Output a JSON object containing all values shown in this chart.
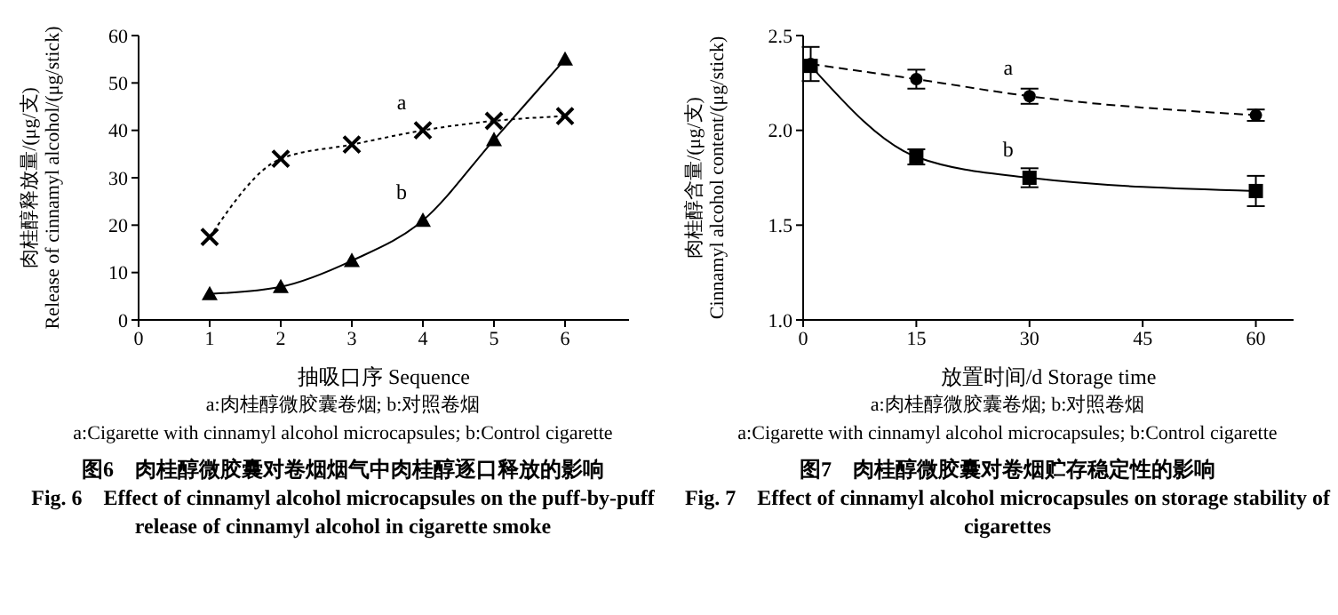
{
  "chart_data": [
    {
      "type": "line",
      "xlabel": "抽吸口序 Sequence",
      "ylabel": "肉桂醇释放量/(μg/支)\nRelease of cinnamyl alcohol/(μg/stick)",
      "x": [
        1,
        2,
        3,
        4,
        5,
        6
      ],
      "xlim": [
        0,
        6.9
      ],
      "xticks": [
        0,
        1,
        2,
        3,
        4,
        5,
        6
      ],
      "ylim": [
        0,
        60
      ],
      "yticks": [
        0,
        10,
        20,
        30,
        40,
        50,
        60
      ],
      "grid": false,
      "series": [
        {
          "name": "a",
          "color": "#000000",
          "marker": "cross",
          "line_style": "dotted",
          "values": [
            17.5,
            34,
            37,
            40,
            42,
            43
          ]
        },
        {
          "name": "b",
          "color": "#000000",
          "marker": "triangle",
          "line_style": "solid",
          "values": [
            5.5,
            7,
            12.5,
            21,
            38,
            55
          ]
        }
      ],
      "annotations": [
        "a:肉桂醇微胶囊卷烟; b:对照卷烟",
        "a:Cigarette with cinnamyl alcohol microcapsules; b:Control cigarette",
        "图6　肉桂醇微胶囊对卷烟烟气中肉桂醇逐口释放的影响",
        "Fig. 6　Effect of cinnamyl alcohol microcapsules on the puff-by-puff release of cinnamyl alcohol in cigarette smoke"
      ]
    },
    {
      "type": "line",
      "xlabel": "放置时间/d  Storage time",
      "ylabel": "肉桂醇含量/(μg/支)\nCinnamyl alcohol content/(μg/stick)",
      "x": [
        1,
        15,
        30,
        60
      ],
      "xlim": [
        0,
        65
      ],
      "xticks": [
        0,
        15,
        30,
        45,
        60
      ],
      "ylim": [
        1,
        2.5
      ],
      "yticks": [
        {
          "value": 1,
          "label": "1.0"
        },
        {
          "value": 1.5,
          "label": "1.5"
        },
        {
          "value": 2,
          "label": "2.0"
        },
        {
          "value": 2.5,
          "label": "2.5"
        }
      ],
      "grid": false,
      "series": [
        {
          "name": "a",
          "color": "#000000",
          "marker": "circle",
          "line_style": "dashed",
          "values": [
            2.35,
            2.27,
            2.18,
            2.08
          ],
          "errors": [
            0.09,
            0.05,
            0.04,
            0.03
          ]
        },
        {
          "name": "b",
          "color": "#000000",
          "marker": "square",
          "line_style": "solid",
          "values": [
            2.34,
            1.86,
            1.75,
            1.68
          ],
          "errors": [
            null,
            0.04,
            0.05,
            0.08
          ]
        }
      ],
      "annotations": [
        "a:肉桂醇微胶囊卷烟; b:对照卷烟",
        "a:Cigarette with cinnamyl alcohol microcapsules; b:Control cigarette",
        "图7　肉桂醇微胶囊对卷烟贮存稳定性的影响",
        "Fig. 7　Effect of cinnamyl alcohol microcapsules on storage stability of cigarettes"
      ]
    }
  ]
}
